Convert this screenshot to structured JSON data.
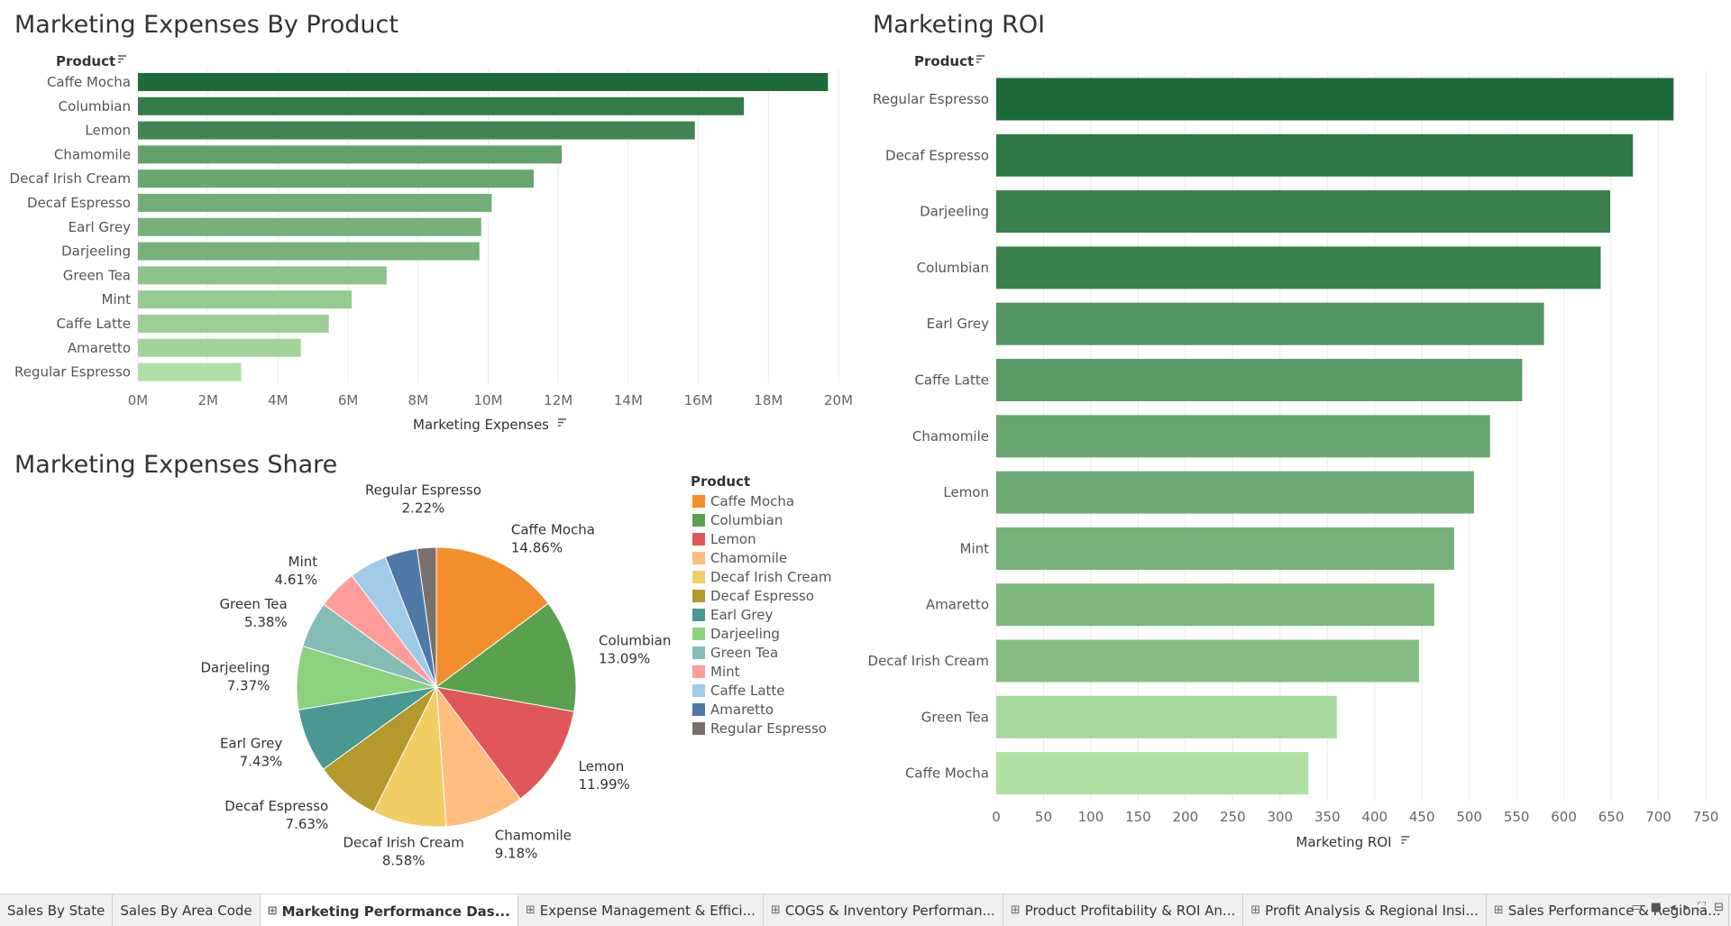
{
  "titles": {
    "expenses": "Marketing Expenses By Product",
    "roi": "Marketing ROI",
    "share": "Marketing Expenses Share"
  },
  "chart_data": [
    {
      "type": "bar",
      "orientation": "horizontal",
      "title": "Marketing Expenses By Product",
      "ylabel": "Product",
      "xlabel": "Marketing Expenses",
      "categories": [
        "Caffe Mocha",
        "Columbian",
        "Lemon",
        "Chamomile",
        "Decaf Irish Cream",
        "Decaf Espresso",
        "Earl Grey",
        "Darjeeling",
        "Green Tea",
        "Mint",
        "Caffe Latte",
        "Amaretto",
        "Regular Espresso"
      ],
      "values": [
        19700000,
        17300000,
        15900000,
        12100000,
        11300000,
        10100000,
        9800000,
        9750000,
        7100000,
        6100000,
        5450000,
        4650000,
        2950000
      ],
      "xlim": [
        0,
        20000000
      ],
      "ticks": [
        "0M",
        "2M",
        "4M",
        "6M",
        "8M",
        "10M",
        "12M",
        "14M",
        "16M",
        "18M",
        "20M"
      ],
      "color_scale": [
        "#b1e0a4",
        "#1e6b3a"
      ],
      "grid": true
    },
    {
      "type": "bar",
      "orientation": "horizontal",
      "title": "Marketing ROI",
      "ylabel": "Product",
      "xlabel": "Marketing ROI",
      "categories": [
        "Regular Espresso",
        "Decaf Espresso",
        "Darjeeling",
        "Columbian",
        "Earl Grey",
        "Caffe Latte",
        "Chamomile",
        "Lemon",
        "Mint",
        "Amaretto",
        "Decaf Irish Cream",
        "Green Tea",
        "Caffe Mocha"
      ],
      "values": [
        716,
        673,
        649,
        639,
        579,
        556,
        522,
        505,
        484,
        463,
        447,
        360,
        330
      ],
      "xlim": [
        0,
        750
      ],
      "ticks": [
        "0",
        "50",
        "100",
        "150",
        "200",
        "250",
        "300",
        "350",
        "400",
        "450",
        "500",
        "550",
        "600",
        "650",
        "700",
        "750"
      ],
      "color_scale": [
        "#b1e0a4",
        "#1e6b3a"
      ],
      "grid": true
    },
    {
      "type": "pie",
      "title": "Marketing Expenses Share",
      "legend_title": "Product",
      "legend_position": "right",
      "slices": [
        {
          "label": "Caffe Mocha",
          "pct": "14.86%",
          "value": 14.86,
          "color": "#f28e2b"
        },
        {
          "label": "Columbian",
          "pct": "13.09%",
          "value": 13.09,
          "color": "#59a14f"
        },
        {
          "label": "Lemon",
          "pct": "11.99%",
          "value": 11.99,
          "color": "#e15759"
        },
        {
          "label": "Chamomile",
          "pct": "9.18%",
          "value": 9.18,
          "color": "#ffbe7d"
        },
        {
          "label": "Decaf Irish Cream",
          "pct": "8.58%",
          "value": 8.58,
          "color": "#f1ce63"
        },
        {
          "label": "Decaf Espresso",
          "pct": "7.63%",
          "value": 7.63,
          "color": "#b6992d"
        },
        {
          "label": "Earl Grey",
          "pct": "7.43%",
          "value": 7.43,
          "color": "#499894"
        },
        {
          "label": "Darjeeling",
          "pct": "7.37%",
          "value": 7.37,
          "color": "#8cd17d"
        },
        {
          "label": "Green Tea",
          "pct": "5.38%",
          "value": 5.38,
          "color": "#86bcb6"
        },
        {
          "label": "Mint",
          "pct": "4.61%",
          "value": 4.61,
          "color": "#ff9d9a"
        },
        {
          "label": "Caffe Latte",
          "pct": "",
          "value": 4.4,
          "color": "#a0cbe8"
        },
        {
          "label": "Amaretto",
          "pct": "",
          "value": 3.76,
          "color": "#4e79a7"
        },
        {
          "label": "Regular Espresso",
          "pct": "2.22%",
          "value": 2.22,
          "color": "#79706e"
        }
      ]
    }
  ],
  "tabs": [
    {
      "label": "Sales By State",
      "icon": "",
      "active": false
    },
    {
      "label": "Sales By Area Code",
      "icon": "",
      "active": false
    },
    {
      "label": "Marketing Performance Das...",
      "icon": "⊞",
      "active": true
    },
    {
      "label": "Expense Management & Effici...",
      "icon": "⊞",
      "active": false
    },
    {
      "label": "COGS & Inventory Performan...",
      "icon": "⊞",
      "active": false
    },
    {
      "label": "Product Profitability & ROI An...",
      "icon": "⊞",
      "active": false
    },
    {
      "label": "Profit Analysis & Regional Insi...",
      "icon": "⊞",
      "active": false
    },
    {
      "label": "Sales Performance & Regiona...",
      "icon": "⊞",
      "active": false
    }
  ],
  "nav_icons": [
    "grid-view-icon",
    "single-view-icon",
    "prev-icon",
    "next-icon",
    "fullscreen-icon",
    "fit-icon"
  ]
}
